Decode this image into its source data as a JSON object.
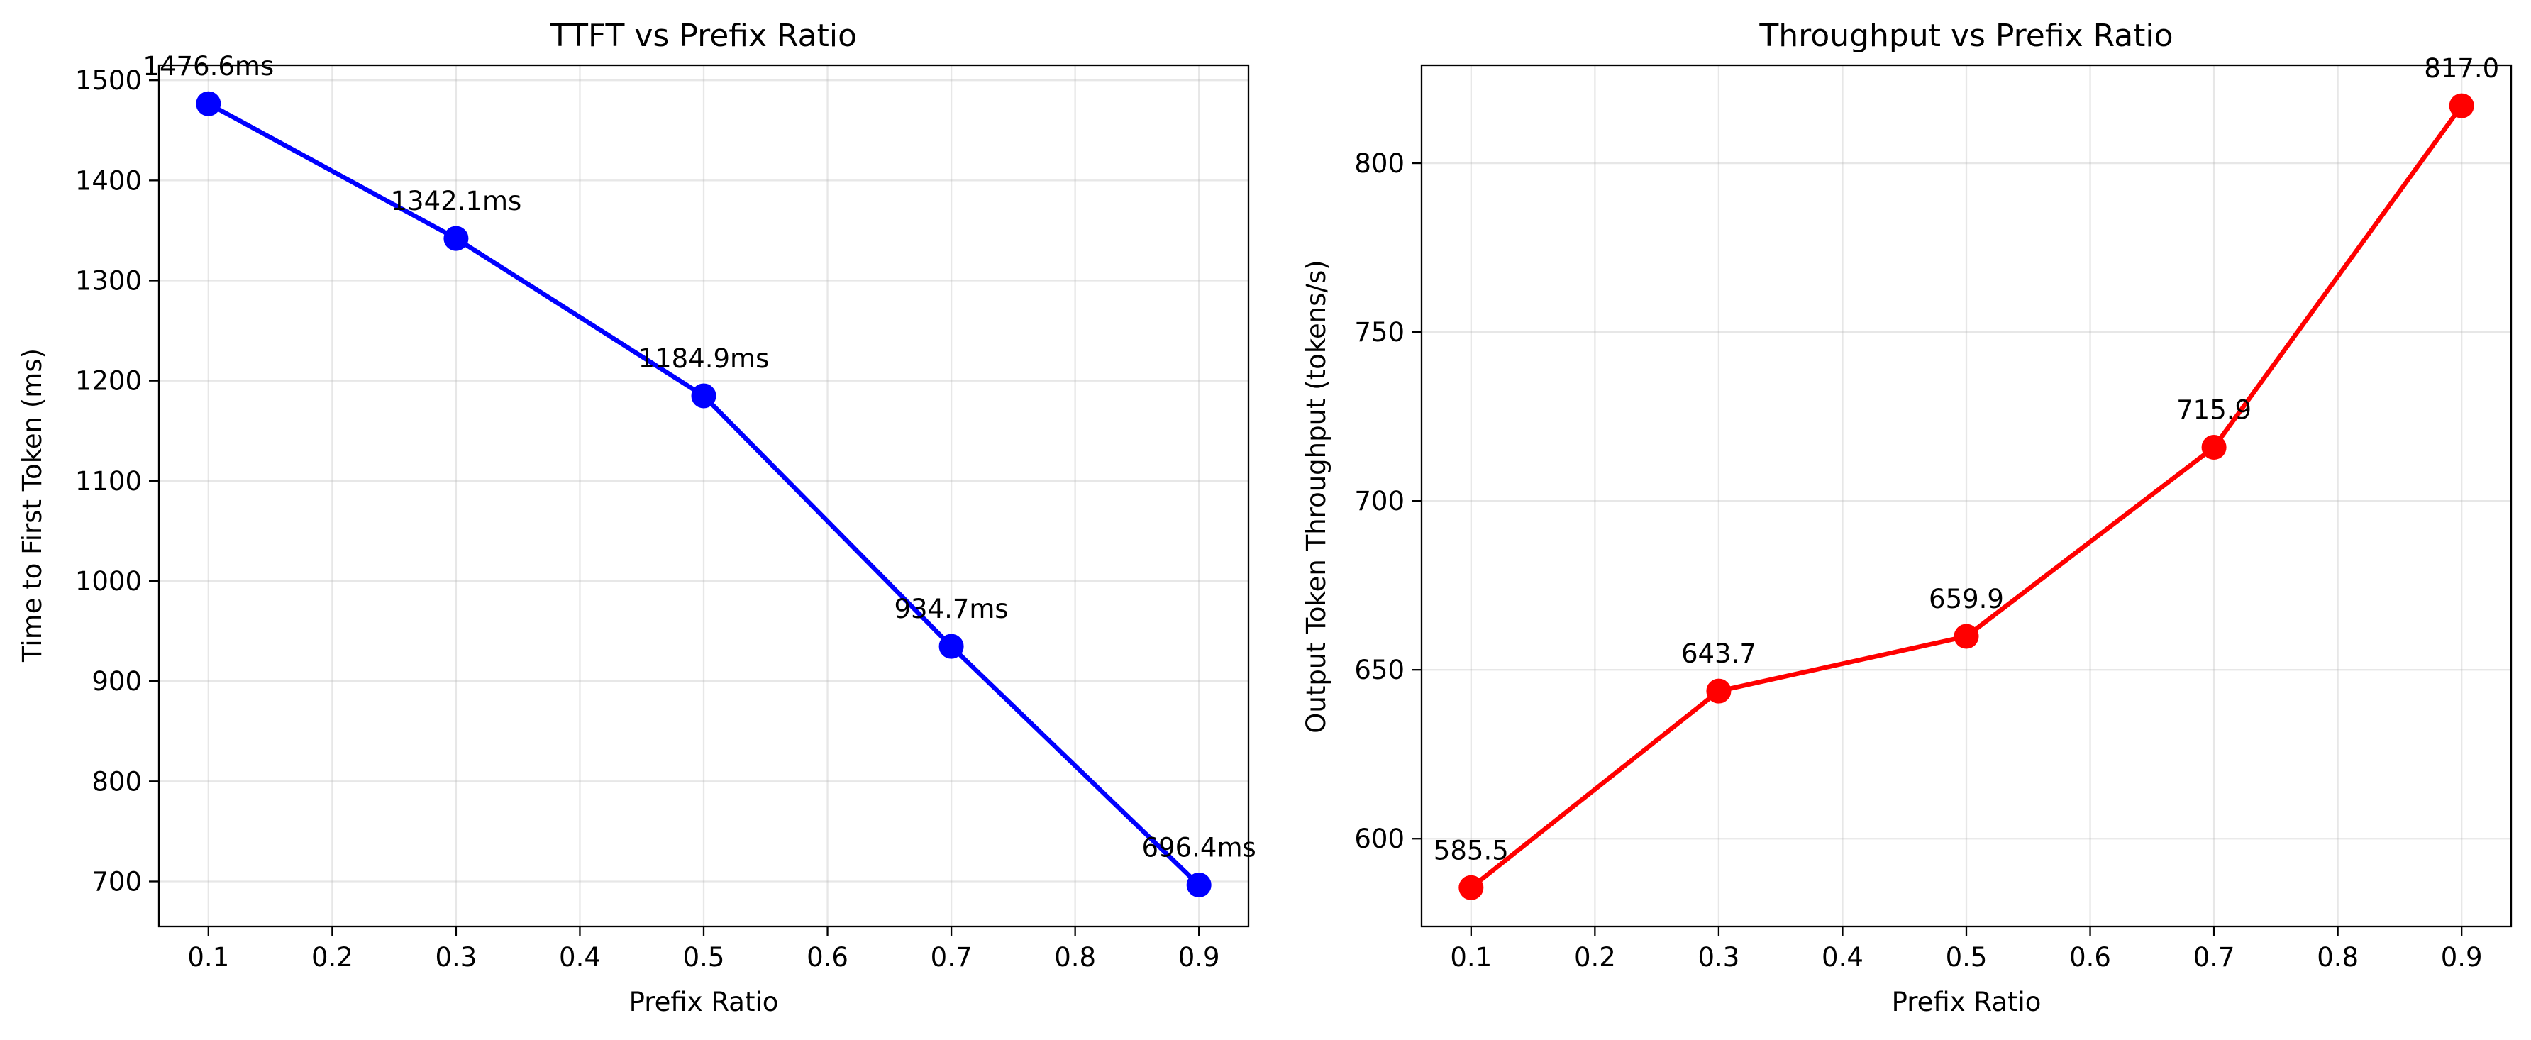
{
  "chart_data": [
    {
      "type": "line",
      "title": "TTFT vs Prefix Ratio",
      "xlabel": "Prefix Ratio",
      "ylabel": "Time to First Token (ms)",
      "xlim": [
        0.06,
        0.94
      ],
      "ylim": [
        655,
        1515
      ],
      "xticks": [
        0.1,
        0.2,
        0.3,
        0.4,
        0.5,
        0.6,
        0.7,
        0.8,
        0.9
      ],
      "xtick_labels": [
        "0.1",
        "0.2",
        "0.3",
        "0.4",
        "0.5",
        "0.6",
        "0.7",
        "0.8",
        "0.9"
      ],
      "yticks": [
        700,
        800,
        900,
        1000,
        1100,
        1200,
        1300,
        1400,
        1500
      ],
      "ytick_labels": [
        "700",
        "800",
        "900",
        "1000",
        "1100",
        "1200",
        "1300",
        "1400",
        "1500"
      ],
      "grid": true,
      "color": "#0000ff",
      "x": [
        0.1,
        0.3,
        0.5,
        0.7,
        0.9
      ],
      "y": [
        1476.6,
        1342.1,
        1184.9,
        934.7,
        696.4
      ],
      "point_labels": [
        "1476.6ms",
        "1342.1ms",
        "1184.9ms",
        "934.7ms",
        "696.4ms"
      ]
    },
    {
      "type": "line",
      "title": "Throughput vs Prefix Ratio",
      "xlabel": "Prefix Ratio",
      "ylabel": "Output Token Throughput (tokens/s)",
      "xlim": [
        0.06,
        0.94
      ],
      "ylim": [
        574,
        829
      ],
      "xticks": [
        0.1,
        0.2,
        0.3,
        0.4,
        0.5,
        0.6,
        0.7,
        0.8,
        0.9
      ],
      "xtick_labels": [
        "0.1",
        "0.2",
        "0.3",
        "0.4",
        "0.5",
        "0.6",
        "0.7",
        "0.8",
        "0.9"
      ],
      "yticks": [
        600,
        650,
        700,
        750,
        800
      ],
      "ytick_labels": [
        "600",
        "650",
        "700",
        "750",
        "800"
      ],
      "grid": true,
      "color": "#ff0000",
      "x": [
        0.1,
        0.3,
        0.5,
        0.7,
        0.9
      ],
      "y": [
        585.5,
        643.7,
        659.9,
        715.9,
        817.0
      ],
      "point_labels": [
        "585.5",
        "643.7",
        "659.9",
        "715.9",
        "817.0"
      ]
    }
  ]
}
